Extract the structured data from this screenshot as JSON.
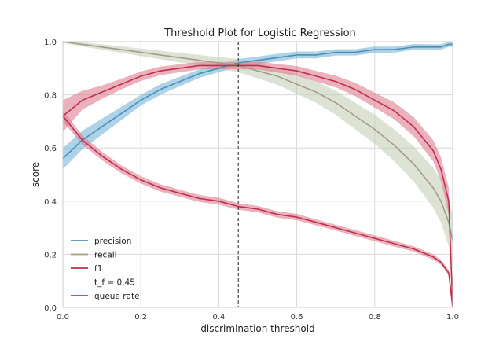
{
  "chart_data": {
    "type": "line",
    "title": "Threshold Plot for Logistic Regression",
    "xlabel": "discrimination threshold",
    "ylabel": "score",
    "xlim": [
      0,
      1
    ],
    "ylim": [
      0,
      1
    ],
    "xticks": [
      "0.0",
      "0.2",
      "0.4",
      "0.6",
      "0.8",
      "1.0"
    ],
    "yticks": [
      "0.0",
      "0.2",
      "0.4",
      "0.6",
      "0.8",
      "1.0"
    ],
    "grid": true,
    "legend_position": "lower-left",
    "threshold": {
      "label": "t_f = 0.45",
      "value": 0.45,
      "color": "#222222",
      "dash": true
    },
    "x": [
      0.0,
      0.05,
      0.1,
      0.15,
      0.2,
      0.25,
      0.3,
      0.35,
      0.4,
      0.45,
      0.5,
      0.55,
      0.6,
      0.65,
      0.7,
      0.75,
      0.8,
      0.85,
      0.9,
      0.95,
      0.97,
      0.99,
      1.0
    ],
    "series": [
      {
        "name": "precision",
        "color": "#4a8fb8",
        "band_color": "#7ab5d6",
        "values": [
          0.56,
          0.63,
          0.68,
          0.73,
          0.78,
          0.82,
          0.85,
          0.88,
          0.9,
          0.92,
          0.93,
          0.94,
          0.95,
          0.95,
          0.96,
          0.96,
          0.97,
          0.97,
          0.98,
          0.98,
          0.98,
          0.99,
          0.99
        ],
        "band": [
          0.04,
          0.035,
          0.03,
          0.025,
          0.02,
          0.02,
          0.018,
          0.016,
          0.015,
          0.015,
          0.014,
          0.014,
          0.013,
          0.013,
          0.012,
          0.012,
          0.012,
          0.011,
          0.011,
          0.01,
          0.01,
          0.01,
          0.01
        ]
      },
      {
        "name": "recall",
        "color": "#a89a8a",
        "band_color": "#c5d0b8",
        "values": [
          1.0,
          0.99,
          0.98,
          0.97,
          0.96,
          0.95,
          0.94,
          0.93,
          0.92,
          0.91,
          0.89,
          0.87,
          0.84,
          0.81,
          0.77,
          0.72,
          0.67,
          0.61,
          0.54,
          0.45,
          0.4,
          0.32,
          0.25
        ],
        "band": [
          0.005,
          0.008,
          0.01,
          0.012,
          0.014,
          0.016,
          0.018,
          0.02,
          0.022,
          0.025,
          0.028,
          0.032,
          0.036,
          0.04,
          0.045,
          0.05,
          0.055,
          0.06,
          0.066,
          0.075,
          0.08,
          0.09,
          0.1
        ]
      },
      {
        "name": "f1",
        "color": "#c0304e",
        "band_color": "#dd7d90",
        "values": [
          0.72,
          0.78,
          0.81,
          0.84,
          0.87,
          0.89,
          0.9,
          0.91,
          0.91,
          0.91,
          0.91,
          0.9,
          0.89,
          0.87,
          0.85,
          0.82,
          0.78,
          0.74,
          0.68,
          0.59,
          0.52,
          0.4,
          0.0
        ],
        "band": [
          0.06,
          0.035,
          0.025,
          0.02,
          0.018,
          0.016,
          0.015,
          0.014,
          0.014,
          0.014,
          0.015,
          0.016,
          0.018,
          0.02,
          0.022,
          0.025,
          0.028,
          0.032,
          0.036,
          0.04,
          0.045,
          0.05,
          0.0
        ]
      },
      {
        "name": "queue rate",
        "color": "#c0304e",
        "band_color": "#dd7d90",
        "values": [
          0.72,
          0.63,
          0.57,
          0.52,
          0.48,
          0.45,
          0.43,
          0.41,
          0.4,
          0.38,
          0.37,
          0.35,
          0.34,
          0.32,
          0.3,
          0.28,
          0.26,
          0.24,
          0.22,
          0.19,
          0.17,
          0.13,
          0.0
        ],
        "band": [
          0.02,
          0.018,
          0.016,
          0.015,
          0.014,
          0.014,
          0.013,
          0.013,
          0.013,
          0.012,
          0.012,
          0.012,
          0.012,
          0.011,
          0.011,
          0.011,
          0.011,
          0.011,
          0.01,
          0.01,
          0.01,
          0.01,
          0.0
        ]
      }
    ],
    "legend": [
      {
        "label": "precision",
        "color": "#4a8fb8",
        "dash": false
      },
      {
        "label": "recall",
        "color": "#a89a8a",
        "dash": false
      },
      {
        "label": "f1",
        "color": "#c0304e",
        "dash": false
      },
      {
        "label": "t_f = 0.45",
        "color": "#222222",
        "dash": true
      },
      {
        "label": "queue rate",
        "color": "#c0304e",
        "dash": false
      }
    ]
  }
}
